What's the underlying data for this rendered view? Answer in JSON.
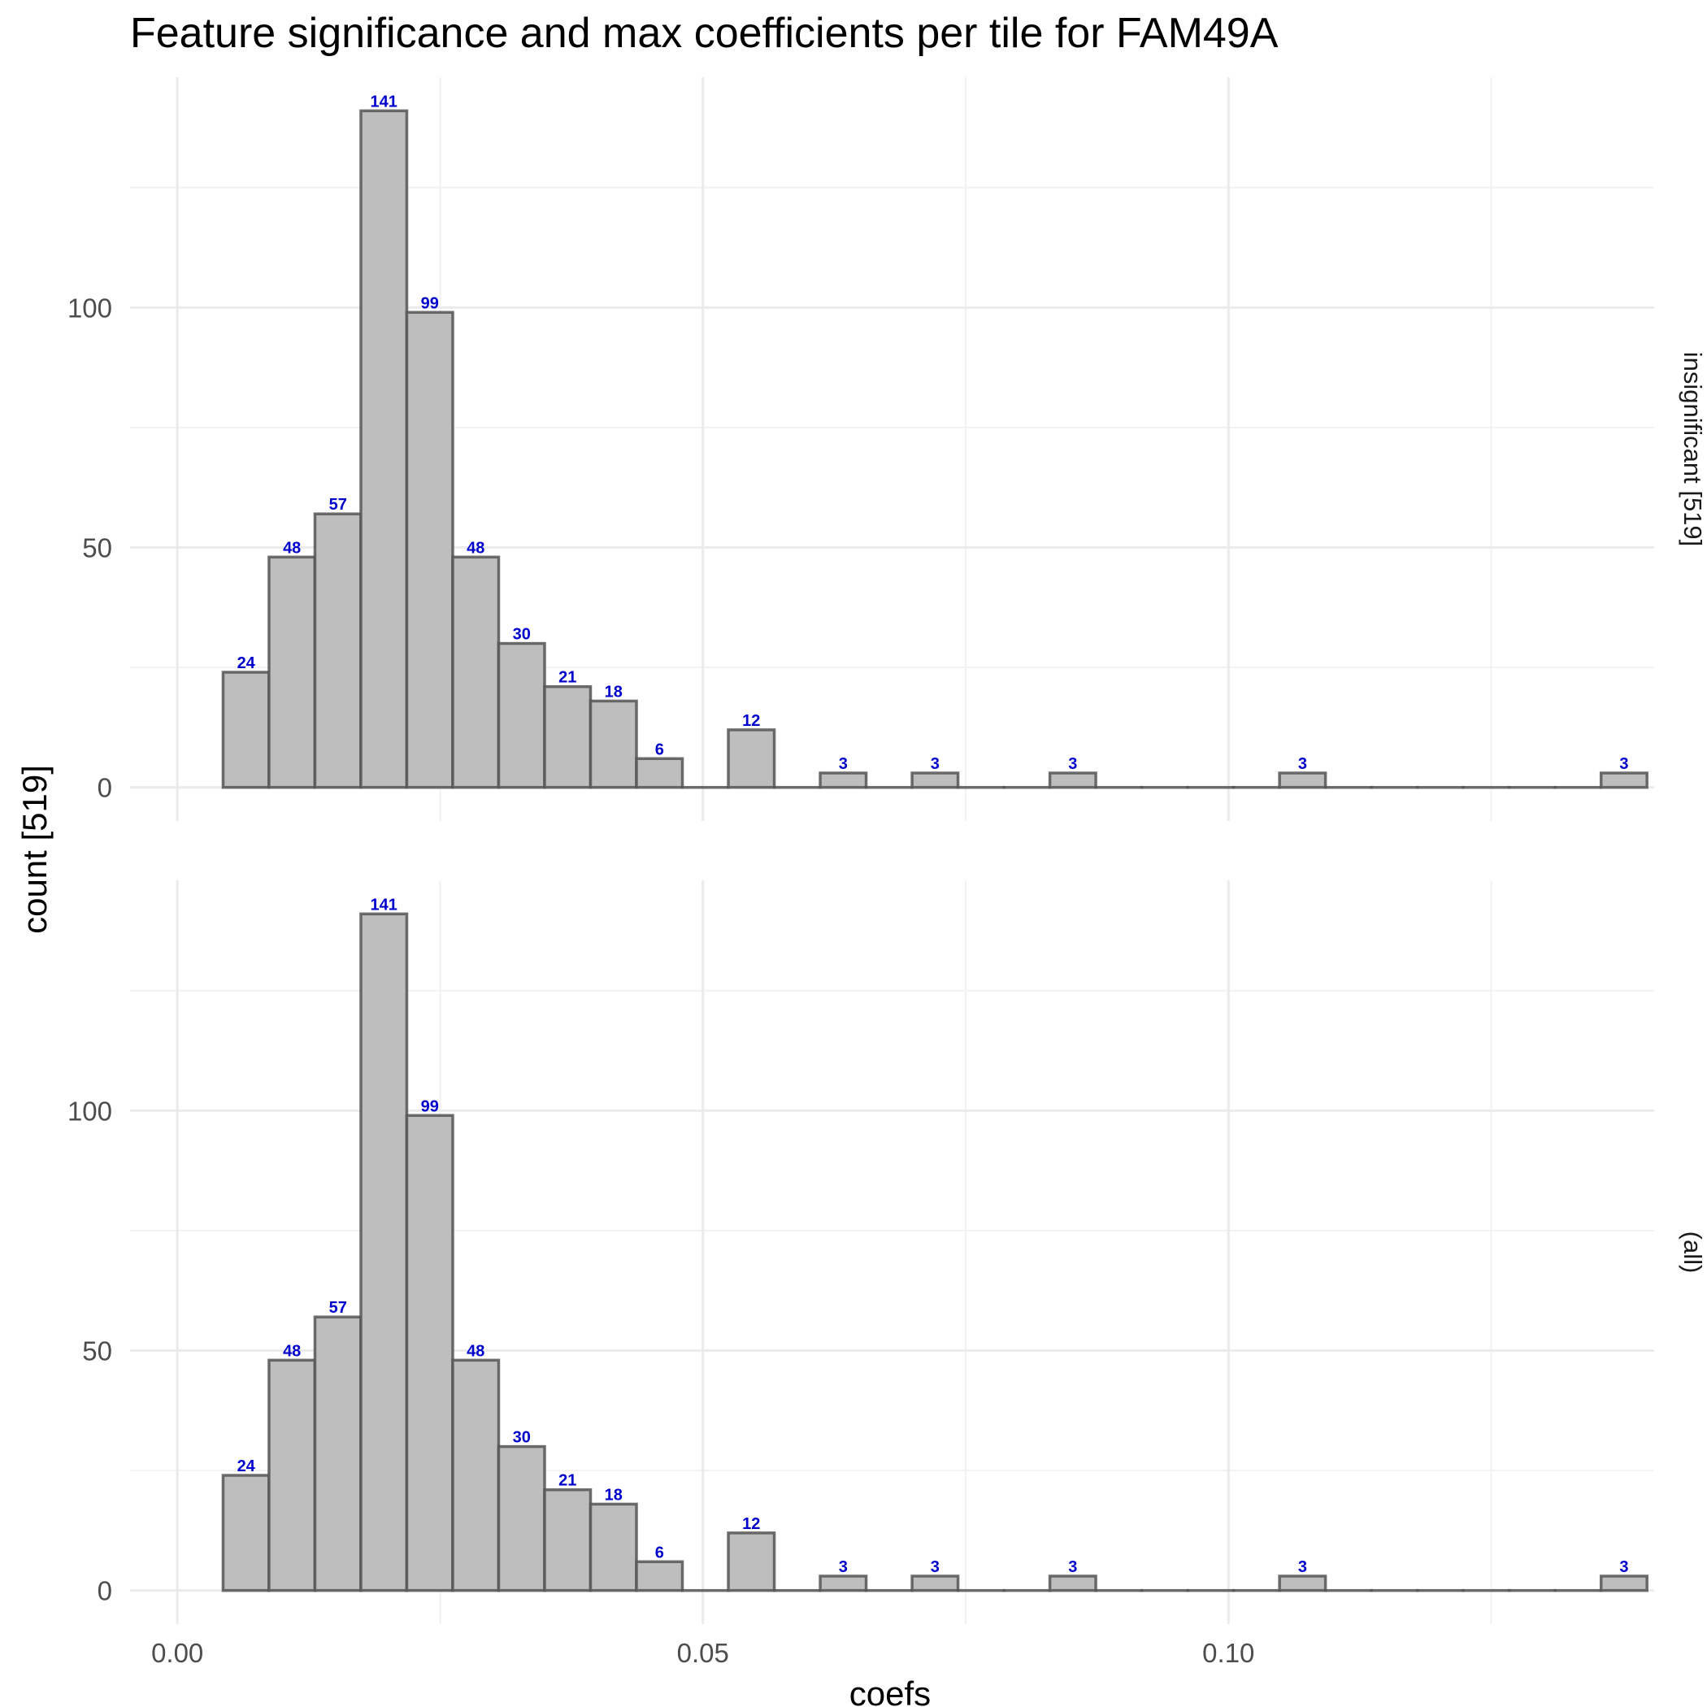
{
  "chart_data": {
    "type": "bar",
    "title": "Feature significance and max coefficients per tile for FAM49A",
    "xlabel": "coefs",
    "ylabel": "count [519]",
    "x_ticks": [
      "0.00",
      "0.05",
      "0.10"
    ],
    "y_ticks": [
      "0",
      "50",
      "100"
    ],
    "xlim": [
      -0.0045,
      0.1405
    ],
    "ylim": [
      -7,
      148
    ],
    "grid": true,
    "bins": [
      {
        "x0": 0.00435,
        "x1": 0.00872
      },
      {
        "x0": 0.00872,
        "x1": 0.01309
      },
      {
        "x0": 0.01309,
        "x1": 0.01746
      },
      {
        "x0": 0.01746,
        "x1": 0.02183
      },
      {
        "x0": 0.02183,
        "x1": 0.0262
      },
      {
        "x0": 0.0262,
        "x1": 0.03057
      },
      {
        "x0": 0.03057,
        "x1": 0.03494
      },
      {
        "x0": 0.03494,
        "x1": 0.03931
      },
      {
        "x0": 0.03931,
        "x1": 0.04368
      },
      {
        "x0": 0.04368,
        "x1": 0.04805
      },
      {
        "x0": 0.04805,
        "x1": 0.05242
      },
      {
        "x0": 0.05242,
        "x1": 0.05679
      },
      {
        "x0": 0.05679,
        "x1": 0.06116
      },
      {
        "x0": 0.06116,
        "x1": 0.06553
      },
      {
        "x0": 0.06553,
        "x1": 0.0699
      },
      {
        "x0": 0.0699,
        "x1": 0.07427
      },
      {
        "x0": 0.07427,
        "x1": 0.07864
      },
      {
        "x0": 0.07864,
        "x1": 0.08301
      },
      {
        "x0": 0.08301,
        "x1": 0.08738
      },
      {
        "x0": 0.08738,
        "x1": 0.09175
      },
      {
        "x0": 0.09175,
        "x1": 0.09612
      },
      {
        "x0": 0.09612,
        "x1": 0.10049
      },
      {
        "x0": 0.10049,
        "x1": 0.10486
      },
      {
        "x0": 0.10486,
        "x1": 0.10923
      },
      {
        "x0": 0.10923,
        "x1": 0.1136
      },
      {
        "x0": 0.1136,
        "x1": 0.11797
      },
      {
        "x0": 0.11797,
        "x1": 0.12234
      },
      {
        "x0": 0.12234,
        "x1": 0.12671
      },
      {
        "x0": 0.12671,
        "x1": 0.13108
      },
      {
        "x0": 0.13108,
        "x1": 0.13545
      },
      {
        "x0": 0.13545,
        "x1": 0.13982
      }
    ],
    "panels": [
      {
        "strip_label": "insignificant [519]",
        "values": [
          24,
          48,
          57,
          141,
          99,
          48,
          30,
          21,
          18,
          6,
          0,
          12,
          0,
          3,
          0,
          3,
          0,
          0,
          3,
          0,
          0,
          0,
          0,
          3,
          0,
          0,
          0,
          0,
          0,
          0,
          3
        ]
      },
      {
        "strip_label": "(all)",
        "values": [
          24,
          48,
          57,
          141,
          99,
          48,
          30,
          21,
          18,
          6,
          0,
          12,
          0,
          3,
          0,
          3,
          0,
          0,
          3,
          0,
          0,
          0,
          0,
          3,
          0,
          0,
          0,
          0,
          0,
          0,
          3
        ]
      }
    ],
    "colors": {
      "bar_fill": "#bebebe",
      "bar_outline": "#555555",
      "bar_label": "#0000cc",
      "grid": "#ebebeb"
    }
  }
}
